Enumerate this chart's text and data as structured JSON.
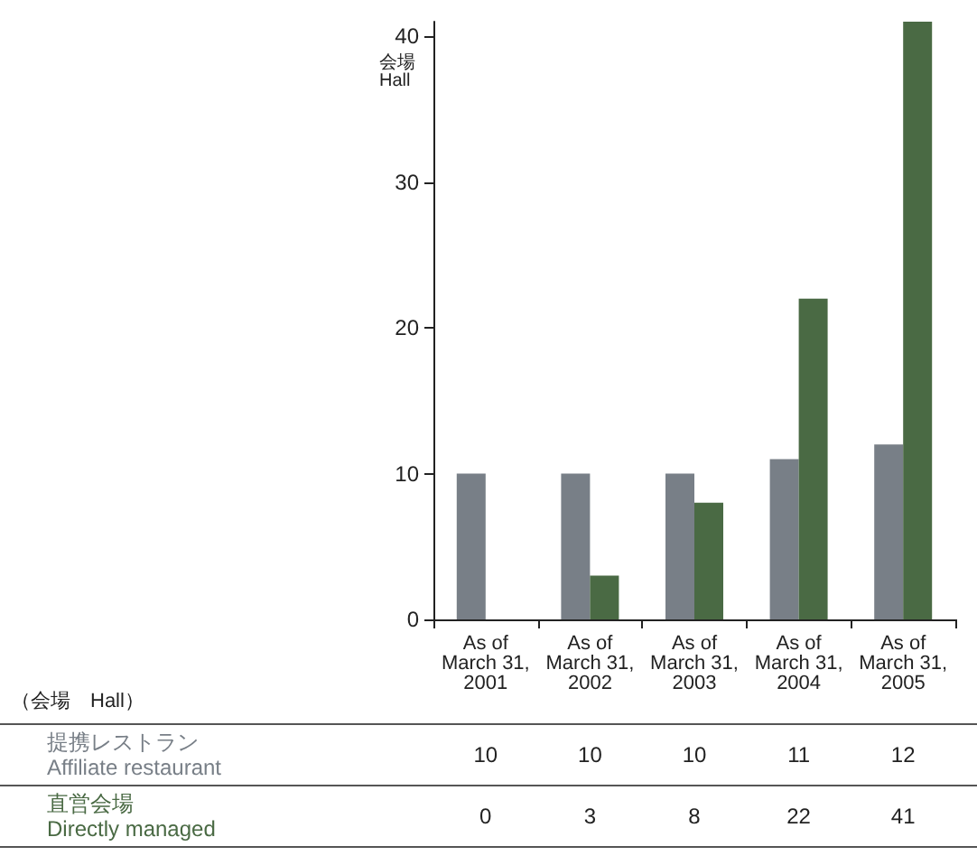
{
  "chart_data": {
    "type": "bar",
    "ylabel": "会場\nHall",
    "categories": [
      "As of\nMarch 31,\n2001",
      "As of\nMarch 31,\n2002",
      "As of\nMarch 31,\n2003",
      "As of\nMarch 31,\n2004",
      "As of\nMarch 31,\n2005"
    ],
    "series": [
      {
        "name": "提携レストラン\nAffiliate restaurant",
        "color": "#787f87",
        "values": [
          10,
          10,
          10,
          11,
          12
        ]
      },
      {
        "name": "直営会場\nDirectly managed",
        "color": "#4a6a44",
        "values": [
          0,
          3,
          8,
          22,
          41
        ]
      }
    ],
    "ylim": [
      0,
      41
    ],
    "yticks": [
      0,
      10,
      20,
      30,
      40
    ],
    "grid": false,
    "legend": false,
    "data_labels": true,
    "annotations": [
      "（会場　Hall）"
    ]
  }
}
